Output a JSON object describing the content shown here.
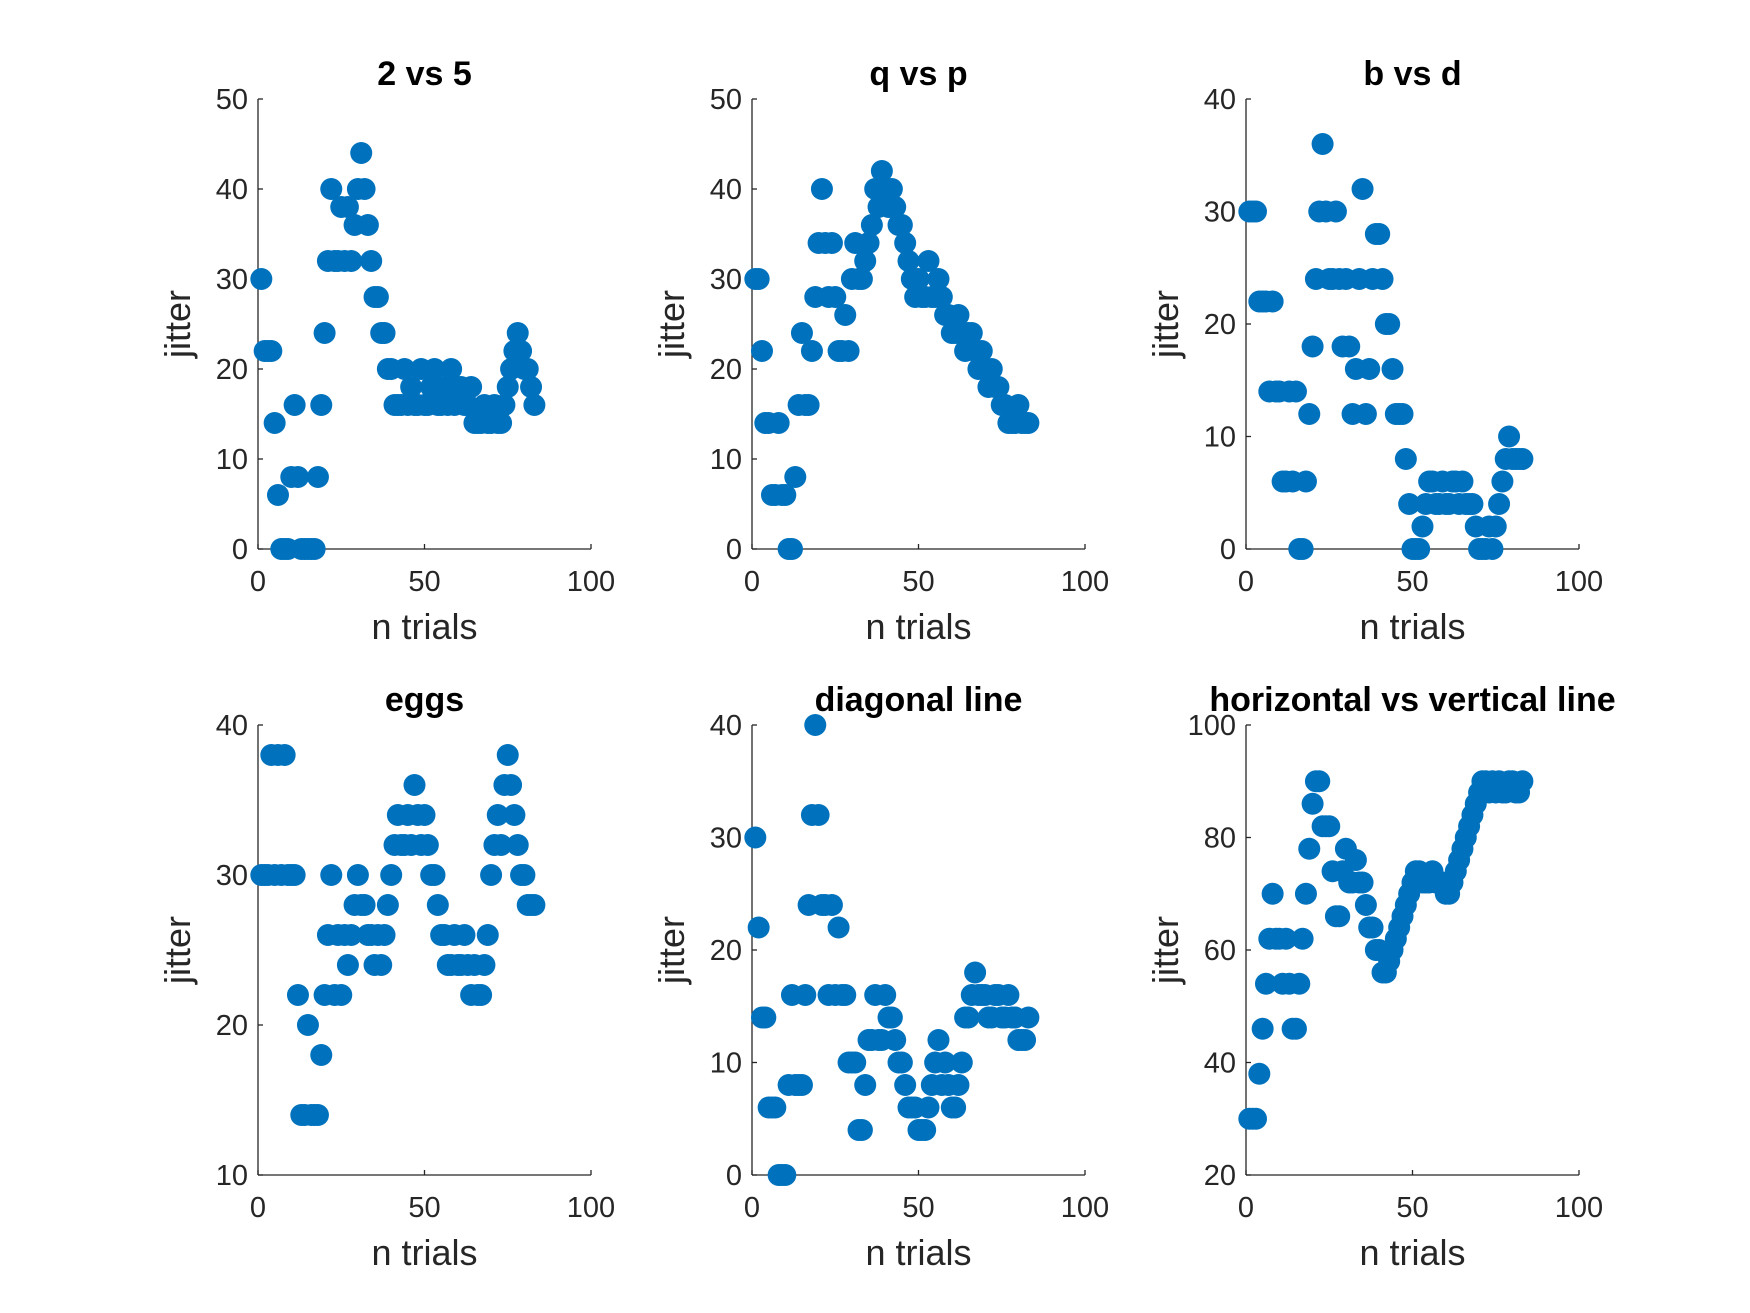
{
  "figure": {
    "marker_color": "#0072BD",
    "axis_color": "#262626",
    "title_color": "#000000"
  },
  "chart_data": [
    {
      "type": "scatter",
      "title": "2 vs 5",
      "xlabel": "n trials",
      "ylabel": "jitter",
      "xlim": [
        0,
        100
      ],
      "ylim": [
        0,
        50
      ],
      "xticks": [
        0,
        50,
        100
      ],
      "yticks": [
        0,
        10,
        20,
        30,
        40,
        50
      ],
      "x": [
        1,
        2,
        3,
        4,
        5,
        6,
        7,
        8,
        9,
        10,
        11,
        12,
        13,
        14,
        15,
        16,
        17,
        18,
        19,
        20,
        21,
        22,
        23,
        24,
        25,
        26,
        27,
        28,
        29,
        30,
        31,
        32,
        33,
        34,
        35,
        36,
        37,
        38,
        39,
        40,
        41,
        42,
        43,
        44,
        45,
        46,
        47,
        48,
        49,
        50,
        51,
        52,
        53,
        54,
        55,
        56,
        57,
        58,
        59,
        60,
        61,
        62,
        63,
        64,
        65,
        66,
        67,
        68,
        69,
        70,
        71,
        72,
        73,
        74,
        75,
        76,
        77,
        78,
        79,
        80,
        81,
        82,
        83
      ],
      "y": [
        30,
        22,
        22,
        22,
        14,
        6,
        0,
        0,
        0,
        8,
        16,
        8,
        0,
        0,
        0,
        0,
        0,
        8,
        16,
        24,
        32,
        40,
        32,
        32,
        38,
        32,
        38,
        32,
        36,
        40,
        44,
        40,
        36,
        32,
        28,
        28,
        24,
        24,
        20,
        20,
        16,
        16,
        16,
        20,
        16,
        18,
        16,
        16,
        20,
        16,
        16,
        18,
        20,
        16,
        16,
        18,
        16,
        20,
        16,
        18,
        18,
        16,
        16,
        18,
        14,
        14,
        14,
        16,
        14,
        14,
        16,
        14,
        14,
        16,
        18,
        20,
        22,
        24,
        22,
        20,
        20,
        18,
        16
      ]
    },
    {
      "type": "scatter",
      "title": "q vs p",
      "xlabel": "n trials",
      "ylabel": "jitter",
      "xlim": [
        0,
        100
      ],
      "ylim": [
        0,
        50
      ],
      "xticks": [
        0,
        50,
        100
      ],
      "yticks": [
        0,
        10,
        20,
        30,
        40,
        50
      ],
      "x": [
        1,
        2,
        3,
        4,
        5,
        6,
        7,
        8,
        9,
        10,
        11,
        12,
        13,
        14,
        15,
        16,
        17,
        18,
        19,
        20,
        21,
        22,
        23,
        24,
        25,
        26,
        27,
        28,
        29,
        30,
        31,
        32,
        33,
        34,
        35,
        36,
        37,
        38,
        39,
        40,
        41,
        42,
        43,
        44,
        45,
        46,
        47,
        48,
        49,
        50,
        51,
        52,
        53,
        54,
        55,
        56,
        57,
        58,
        59,
        60,
        61,
        62,
        63,
        64,
        65,
        66,
        67,
        68,
        69,
        70,
        71,
        72,
        73,
        74,
        75,
        76,
        77,
        78,
        79,
        80,
        81,
        82,
        83
      ],
      "y": [
        30,
        30,
        22,
        14,
        14,
        6,
        6,
        14,
        6,
        6,
        0,
        0,
        8,
        16,
        24,
        16,
        16,
        22,
        28,
        34,
        40,
        34,
        28,
        34,
        28,
        22,
        22,
        26,
        22,
        30,
        34,
        30,
        30,
        32,
        34,
        36,
        40,
        38,
        42,
        40,
        38,
        40,
        38,
        36,
        36,
        34,
        32,
        30,
        28,
        30,
        28,
        28,
        32,
        28,
        28,
        30,
        28,
        26,
        26,
        24,
        24,
        26,
        24,
        22,
        24,
        24,
        22,
        20,
        22,
        20,
        18,
        20,
        18,
        18,
        16,
        16,
        14,
        14,
        14,
        16,
        14,
        14,
        14
      ]
    },
    {
      "type": "scatter",
      "title": "b vs d",
      "xlabel": "n trials",
      "ylabel": "jitter",
      "xlim": [
        0,
        100
      ],
      "ylim": [
        0,
        40
      ],
      "xticks": [
        0,
        50,
        100
      ],
      "yticks": [
        0,
        10,
        20,
        30,
        40
      ],
      "x": [
        1,
        2,
        3,
        4,
        5,
        6,
        7,
        8,
        9,
        10,
        11,
        12,
        13,
        14,
        15,
        16,
        17,
        18,
        19,
        20,
        21,
        22,
        23,
        24,
        25,
        26,
        27,
        28,
        29,
        30,
        31,
        32,
        33,
        34,
        35,
        36,
        37,
        38,
        39,
        40,
        41,
        42,
        43,
        44,
        45,
        46,
        47,
        48,
        49,
        50,
        51,
        52,
        53,
        54,
        55,
        56,
        57,
        58,
        59,
        60,
        61,
        62,
        63,
        64,
        65,
        66,
        67,
        68,
        69,
        70,
        71,
        72,
        73,
        74,
        75,
        76,
        77,
        78,
        79,
        80,
        81,
        82,
        83
      ],
      "y": [
        30,
        30,
        30,
        22,
        22,
        22,
        14,
        22,
        14,
        14,
        6,
        6,
        14,
        6,
        14,
        0,
        0,
        6,
        12,
        18,
        24,
        30,
        36,
        30,
        24,
        24,
        30,
        24,
        18,
        24,
        18,
        12,
        16,
        24,
        32,
        12,
        16,
        24,
        28,
        28,
        24,
        20,
        20,
        16,
        12,
        12,
        12,
        8,
        4,
        0,
        0,
        0,
        2,
        4,
        6,
        6,
        4,
        4,
        6,
        4,
        4,
        6,
        6,
        4,
        6,
        4,
        4,
        4,
        2,
        0,
        0,
        0,
        2,
        0,
        2,
        4,
        6,
        8,
        10,
        8,
        8,
        8,
        8
      ]
    },
    {
      "type": "scatter",
      "title": "eggs",
      "xlabel": "n trials",
      "ylabel": "jitter",
      "xlim": [
        0,
        100
      ],
      "ylim": [
        10,
        40
      ],
      "xticks": [
        0,
        50,
        100
      ],
      "yticks": [
        10,
        20,
        30,
        40
      ],
      "x": [
        1,
        2,
        3,
        4,
        5,
        6,
        7,
        8,
        9,
        10,
        11,
        12,
        13,
        14,
        15,
        16,
        17,
        18,
        19,
        20,
        21,
        22,
        23,
        24,
        25,
        26,
        27,
        28,
        29,
        30,
        31,
        32,
        33,
        34,
        35,
        36,
        37,
        38,
        39,
        40,
        41,
        42,
        43,
        44,
        45,
        46,
        47,
        48,
        49,
        50,
        51,
        52,
        53,
        54,
        55,
        56,
        57,
        58,
        59,
        60,
        61,
        62,
        63,
        64,
        65,
        66,
        67,
        68,
        69,
        70,
        71,
        72,
        73,
        74,
        75,
        76,
        77,
        78,
        79,
        80,
        81,
        82,
        83
      ],
      "y": [
        30,
        30,
        30,
        38,
        30,
        38,
        30,
        38,
        30,
        30,
        30,
        22,
        14,
        14,
        20,
        14,
        14,
        14,
        18,
        22,
        26,
        30,
        22,
        26,
        22,
        26,
        24,
        26,
        28,
        30,
        28,
        28,
        26,
        26,
        24,
        26,
        24,
        26,
        28,
        30,
        32,
        34,
        32,
        32,
        34,
        32,
        36,
        34,
        32,
        34,
        32,
        30,
        30,
        28,
        26,
        26,
        24,
        24,
        26,
        24,
        24,
        26,
        24,
        22,
        24,
        22,
        22,
        24,
        26,
        30,
        32,
        34,
        32,
        36,
        38,
        36,
        34,
        32,
        30,
        30,
        28,
        28,
        28
      ]
    },
    {
      "type": "scatter",
      "title": "diagonal line",
      "xlabel": "n trials",
      "ylabel": "jitter",
      "xlim": [
        0,
        100
      ],
      "ylim": [
        0,
        40
      ],
      "xticks": [
        0,
        50,
        100
      ],
      "yticks": [
        0,
        10,
        20,
        30,
        40
      ],
      "x": [
        1,
        2,
        3,
        4,
        5,
        6,
        7,
        8,
        9,
        10,
        11,
        12,
        13,
        14,
        15,
        16,
        17,
        18,
        19,
        20,
        21,
        22,
        23,
        24,
        25,
        26,
        27,
        28,
        29,
        30,
        31,
        32,
        33,
        34,
        35,
        36,
        37,
        38,
        39,
        40,
        41,
        42,
        43,
        44,
        45,
        46,
        47,
        48,
        49,
        50,
        51,
        52,
        53,
        54,
        55,
        56,
        57,
        58,
        59,
        60,
        61,
        62,
        63,
        64,
        65,
        66,
        67,
        68,
        69,
        70,
        71,
        72,
        73,
        74,
        75,
        76,
        77,
        78,
        79,
        80,
        81,
        82,
        83
      ],
      "y": [
        30,
        22,
        14,
        14,
        6,
        6,
        6,
        0,
        0,
        0,
        8,
        16,
        8,
        8,
        8,
        16,
        24,
        32,
        40,
        32,
        24,
        24,
        16,
        24,
        16,
        22,
        16,
        16,
        10,
        10,
        10,
        4,
        4,
        8,
        12,
        12,
        16,
        12,
        12,
        16,
        14,
        14,
        12,
        10,
        10,
        8,
        6,
        6,
        6,
        4,
        4,
        4,
        6,
        8,
        10,
        12,
        8,
        10,
        8,
        6,
        6,
        8,
        10,
        14,
        14,
        16,
        18,
        16,
        16,
        16,
        14,
        14,
        16,
        16,
        14,
        14,
        16,
        14,
        14,
        12,
        12,
        12,
        14
      ]
    },
    {
      "type": "scatter",
      "title": "horizontal vs vertical line",
      "xlabel": "n trials",
      "ylabel": "jitter",
      "xlim": [
        0,
        100
      ],
      "ylim": [
        20,
        100
      ],
      "xticks": [
        0,
        50,
        100
      ],
      "yticks": [
        20,
        40,
        60,
        80,
        100
      ],
      "x": [
        1,
        2,
        3,
        4,
        5,
        6,
        7,
        8,
        9,
        10,
        11,
        12,
        13,
        14,
        15,
        16,
        17,
        18,
        19,
        20,
        21,
        22,
        23,
        24,
        25,
        26,
        27,
        28,
        29,
        30,
        31,
        32,
        33,
        34,
        35,
        36,
        37,
        38,
        39,
        40,
        41,
        42,
        43,
        44,
        45,
        46,
        47,
        48,
        49,
        50,
        51,
        52,
        53,
        54,
        55,
        56,
        57,
        58,
        59,
        60,
        61,
        62,
        63,
        64,
        65,
        66,
        67,
        68,
        69,
        70,
        71,
        72,
        73,
        74,
        75,
        76,
        77,
        78,
        79,
        80,
        81,
        82,
        83
      ],
      "y": [
        30,
        30,
        30,
        38,
        46,
        54,
        62,
        70,
        62,
        62,
        54,
        62,
        54,
        46,
        46,
        54,
        62,
        70,
        78,
        86,
        90,
        90,
        82,
        82,
        82,
        74,
        66,
        66,
        74,
        78,
        72,
        72,
        76,
        72,
        72,
        68,
        64,
        64,
        60,
        60,
        56,
        56,
        58,
        60,
        62,
        64,
        66,
        68,
        70,
        72,
        74,
        74,
        72,
        72,
        72,
        74,
        72,
        72,
        72,
        70,
        70,
        72,
        74,
        76,
        78,
        80,
        82,
        84,
        86,
        88,
        90,
        90,
        88,
        90,
        88,
        90,
        88,
        88,
        90,
        90,
        88,
        88,
        90
      ]
    }
  ]
}
